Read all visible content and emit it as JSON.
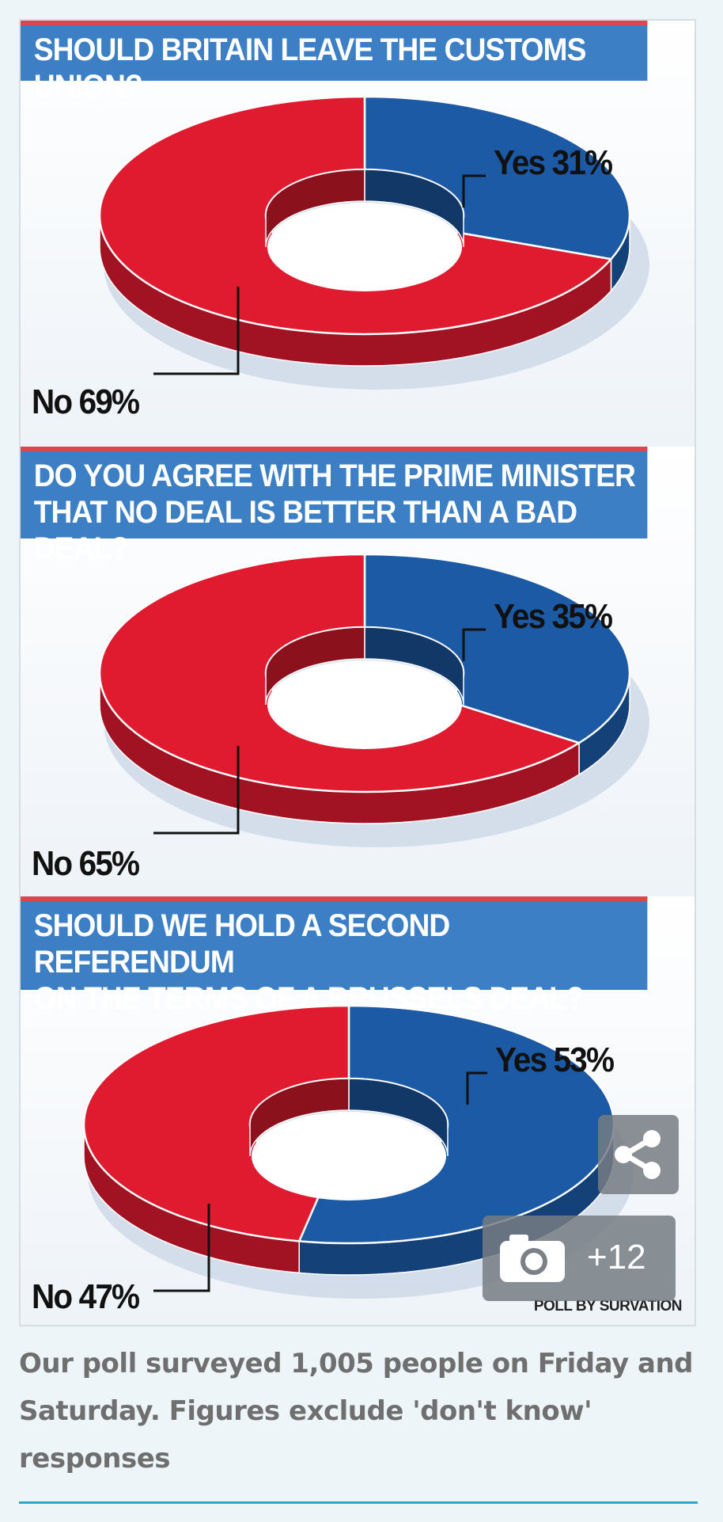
{
  "chart_data": [
    {
      "type": "pie",
      "title": "SHOULD BRITAIN LEAVE THE CUSTOMS UNION?",
      "categories": [
        "Yes",
        "No"
      ],
      "values": [
        31,
        69
      ],
      "labels": [
        "Yes 31%",
        "No 69%"
      ],
      "colors": [
        "#1c5aa6",
        "#e01b2f"
      ]
    },
    {
      "type": "pie",
      "title": "DO YOU AGREE WITH THE PRIME MINISTER\nTHAT NO DEAL IS BETTER THAN A BAD DEAL?",
      "categories": [
        "Yes",
        "No"
      ],
      "values": [
        35,
        65
      ],
      "labels": [
        "Yes 35%",
        "No 65%"
      ],
      "colors": [
        "#1c5aa6",
        "#e01b2f"
      ]
    },
    {
      "type": "pie",
      "title": "SHOULD WE HOLD A SECOND REFERENDUM\nON THE TERMS OF A BRUSSELS DEAL?",
      "categories": [
        "Yes",
        "No"
      ],
      "values": [
        53,
        47
      ],
      "labels": [
        "Yes 53%",
        "No 47%"
      ],
      "colors": [
        "#1c5aa6",
        "#e01b2f"
      ]
    }
  ],
  "credit": "POLL BY SURVATION",
  "overlay": {
    "share_icon": "share-icon",
    "gallery_icon": "camera-icon",
    "gallery_count": "+12"
  },
  "caption": "Our poll surveyed 1,005 people on Friday and Saturday. Figures exclude 'don't know' responses"
}
